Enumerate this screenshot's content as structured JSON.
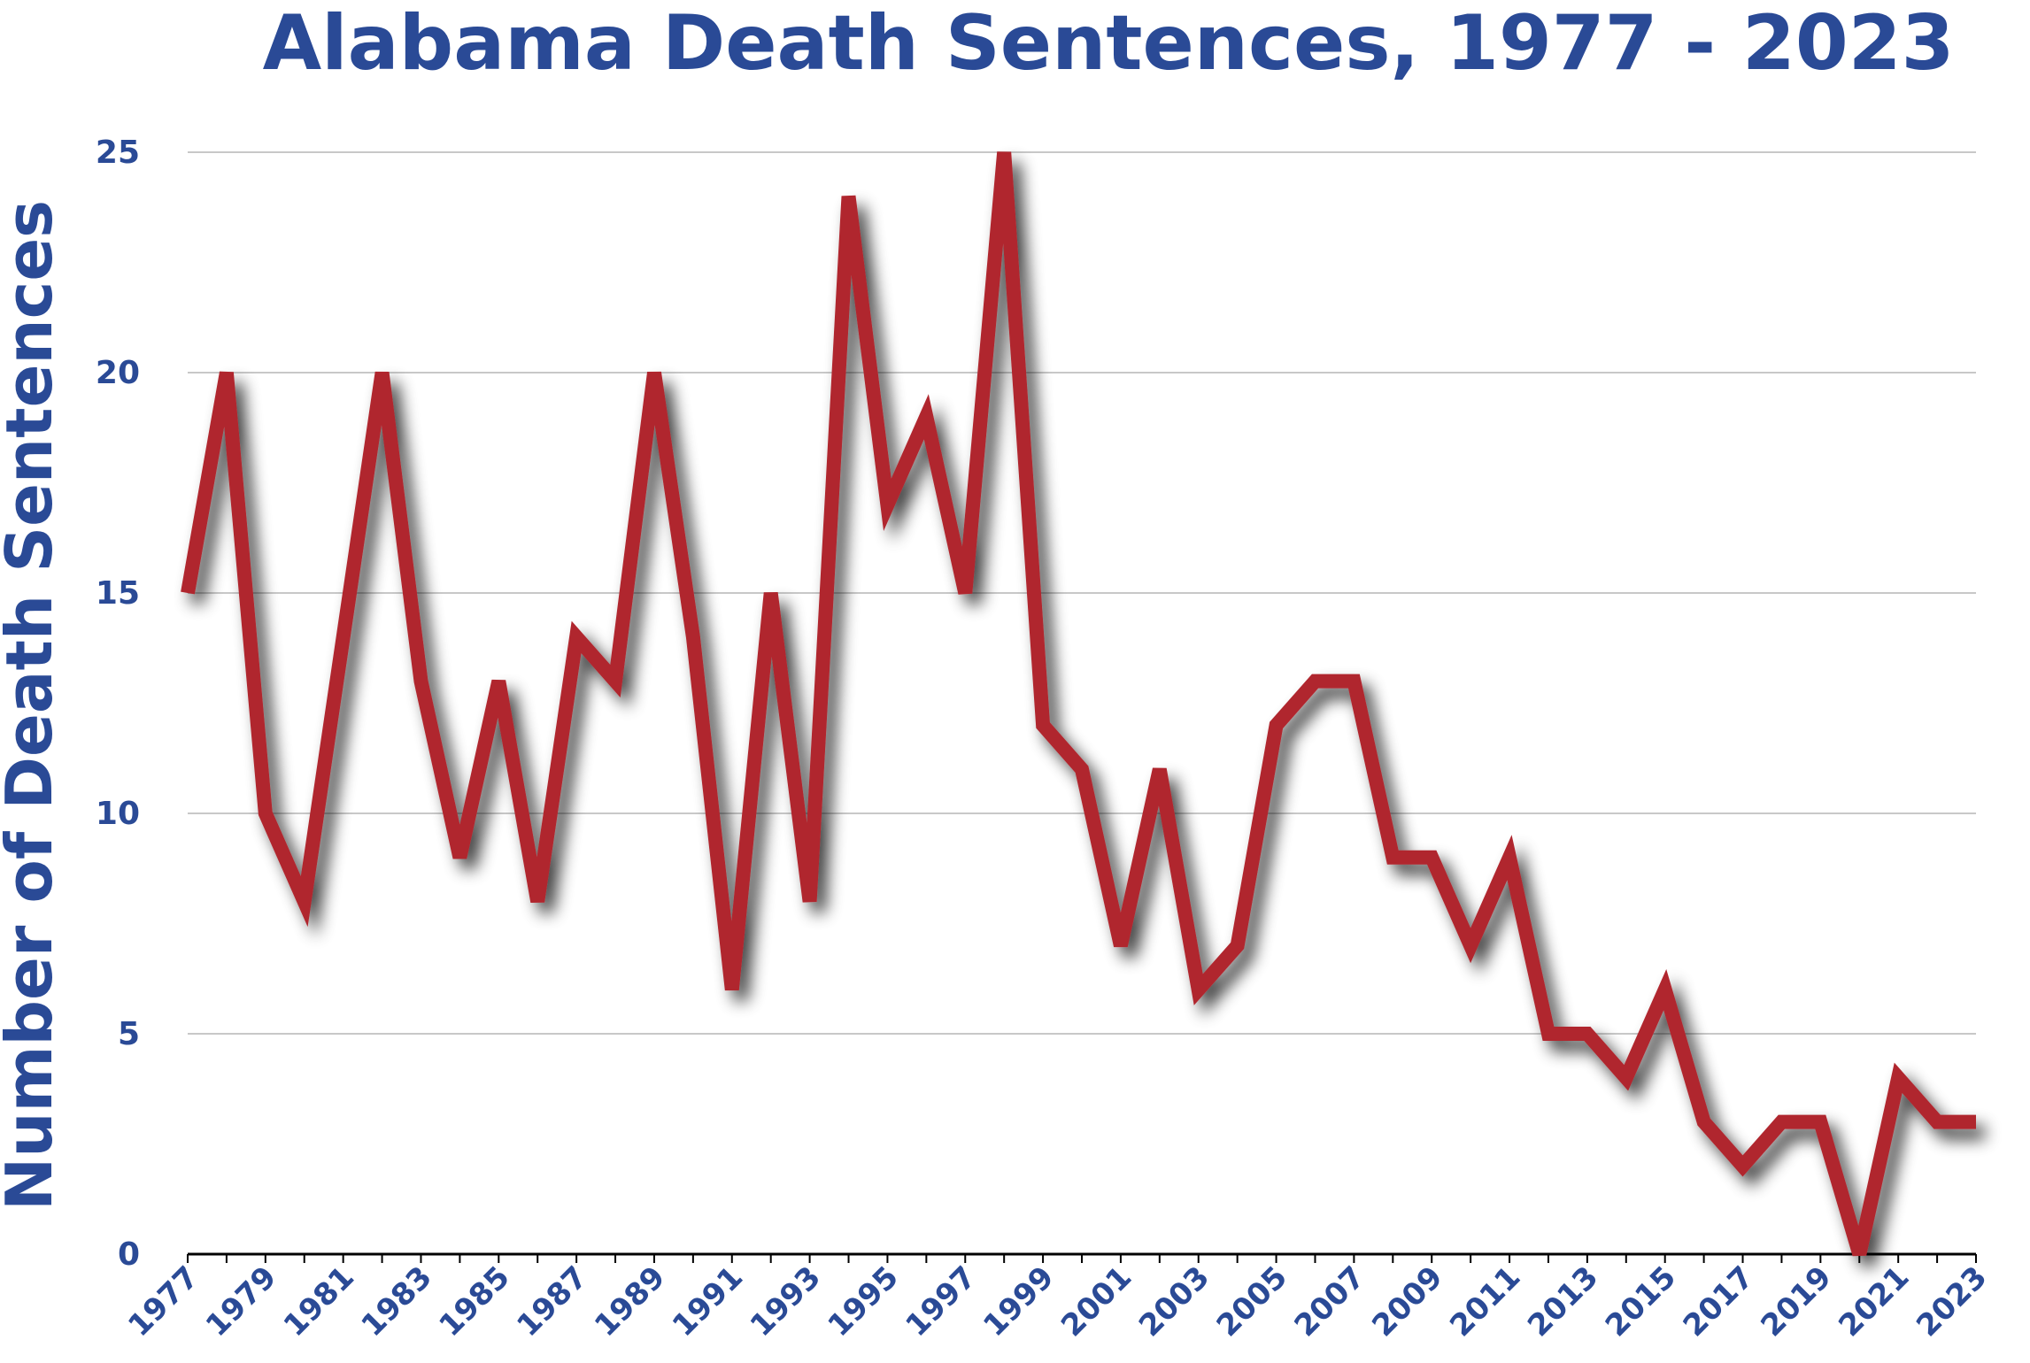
{
  "chart_data": {
    "type": "line",
    "title": "Alabama Death Sentences, 1977 - 2023",
    "xlabel": "",
    "ylabel": "Number of Death Sentences",
    "ylim": [
      0,
      25
    ],
    "yticks": [
      0,
      5,
      10,
      15,
      20,
      25
    ],
    "grid": "horizontal",
    "xtick_labels": [
      "1977",
      "1979",
      "1981",
      "1983",
      "1985",
      "1987",
      "1989",
      "1991",
      "1993",
      "1995",
      "1997",
      "1999",
      "2001",
      "2003",
      "2005",
      "2007",
      "2009",
      "2011",
      "2013",
      "2015",
      "2017",
      "2019",
      "2021",
      "2023"
    ],
    "x": [
      1977,
      1978,
      1979,
      1980,
      1981,
      1982,
      1983,
      1984,
      1985,
      1986,
      1987,
      1988,
      1989,
      1990,
      1991,
      1992,
      1993,
      1994,
      1995,
      1996,
      1997,
      1998,
      1999,
      2000,
      2001,
      2002,
      2003,
      2004,
      2005,
      2006,
      2007,
      2008,
      2009,
      2010,
      2011,
      2012,
      2013,
      2014,
      2015,
      2016,
      2017,
      2018,
      2019,
      2020,
      2021,
      2022,
      2023
    ],
    "series": [
      {
        "values": [
          15,
          20,
          10,
          8,
          14,
          20,
          13,
          9,
          13,
          8,
          14,
          13,
          20,
          14,
          6,
          15,
          8,
          24,
          17,
          19,
          15,
          25,
          12,
          11,
          7,
          11,
          6,
          7,
          12,
          13,
          13,
          9,
          9,
          7,
          9,
          5,
          5,
          4,
          6,
          3,
          2,
          3,
          3,
          0,
          4,
          3,
          3
        ]
      }
    ],
    "colors": {
      "line": "#b0262e",
      "text": "#2a4a96",
      "grid": "#c8c8c8",
      "axis": "#000000",
      "shadow": "#333333"
    }
  }
}
